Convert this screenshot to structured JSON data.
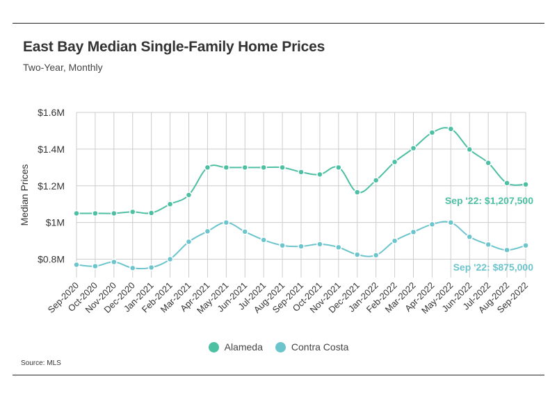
{
  "title": "East Bay Median Single-Family Home Prices",
  "subtitle": "Two-Year, Monthly",
  "source": "Source:  MLS",
  "colors": {
    "alameda": "#4dbfa3",
    "contra_costa": "#6cc4cc",
    "grid": "#cccccc",
    "axis_text": "#333333"
  },
  "chart_data": {
    "type": "line",
    "title": "East Bay Median Single-Family Home Prices",
    "subtitle": "Two-Year, Monthly",
    "xlabel": "",
    "ylabel": "Median Prices",
    "ylim": [
      700000,
      1600000
    ],
    "yticks": [
      800000,
      1000000,
      1200000,
      1400000,
      1600000
    ],
    "ytick_labels": [
      "$0.8M",
      "$1M",
      "$1.2M",
      "$1.4M",
      "$1.6M"
    ],
    "grid": true,
    "legend_position": "bottom",
    "categories": [
      "Sep-2020",
      "Oct-2020",
      "Nov-2020",
      "Dec-2020",
      "Jan-2021",
      "Feb-2021",
      "Mar-2021",
      "Apr-2021",
      "May-2021",
      "Jun-2021",
      "Jul-2021",
      "Aug-2021",
      "Sep-2021",
      "Oct-2021",
      "Nov-2021",
      "Dec-2021",
      "Jan-2022",
      "Feb-2022",
      "Mar-2022",
      "Apr-2022",
      "May-2022",
      "Jun-2022",
      "Jul-2022",
      "Aug-2022",
      "Sep-2022"
    ],
    "series": [
      {
        "name": "Alameda",
        "color": "#4dbfa3",
        "values": [
          1050000,
          1050000,
          1050000,
          1058000,
          1052000,
          1100000,
          1150000,
          1300000,
          1300000,
          1300000,
          1300000,
          1300000,
          1275000,
          1262000,
          1300000,
          1165000,
          1230000,
          1330000,
          1405000,
          1490000,
          1510000,
          1398000,
          1325000,
          1215000,
          1207500
        ],
        "annotation": "Sep '22: $1,207,500"
      },
      {
        "name": "Contra Costa",
        "color": "#6cc4cc",
        "values": [
          770000,
          762000,
          785000,
          752000,
          755000,
          800000,
          895000,
          952000,
          1000000,
          950000,
          905000,
          875000,
          870000,
          882000,
          865000,
          825000,
          822000,
          900000,
          948000,
          990000,
          1000000,
          922000,
          880000,
          850000,
          875000
        ],
        "annotation": "Sep '22: $875,000"
      }
    ]
  }
}
